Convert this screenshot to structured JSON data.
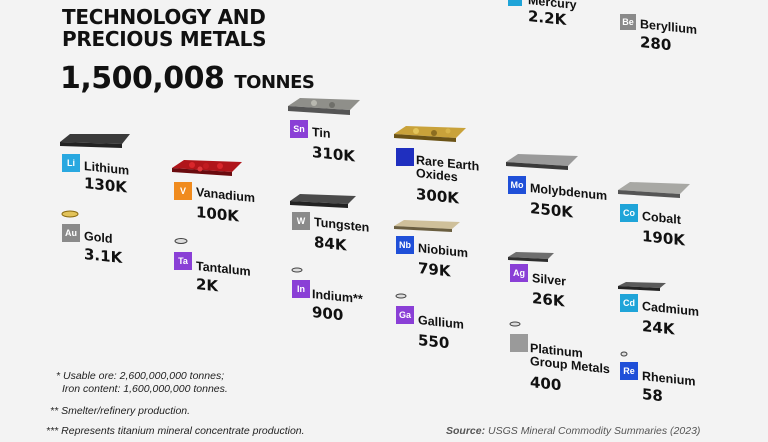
{
  "title_line1": "TECHNOLOGY AND",
  "title_line2": "PRECIOUS METALS",
  "total_value": "1,500,008",
  "total_unit": "TONNES",
  "colors": {
    "li": "#29a8e0",
    "v": "#f08b1e",
    "purple": "#8a3fd6",
    "gray": "#8a8a8a",
    "blue": "#1f4fd8",
    "cyan": "#1fa4d8"
  },
  "metals": [
    {
      "key": "hg",
      "symbol": "",
      "name": "Mercury",
      "value": "2.2K"
    },
    {
      "key": "be",
      "symbol": "Be",
      "name": "Beryllium",
      "value": "280"
    },
    {
      "key": "li",
      "symbol": "Li",
      "name": "Lithium",
      "value": "130K"
    },
    {
      "key": "v",
      "symbol": "V",
      "name": "Vanadium",
      "value": "100K"
    },
    {
      "key": "sn",
      "symbol": "Sn",
      "name": "Tin",
      "value": "310K"
    },
    {
      "key": "ree",
      "symbol": "",
      "name": "Rare Earth Oxides",
      "value": "300K"
    },
    {
      "key": "mo",
      "symbol": "Mo",
      "name": "Molybdenum",
      "value": "250K"
    },
    {
      "key": "co",
      "symbol": "Co",
      "name": "Cobalt",
      "value": "190K"
    },
    {
      "key": "au",
      "symbol": "Au",
      "name": "Gold",
      "value": "3.1K"
    },
    {
      "key": "w",
      "symbol": "W",
      "name": "Tungsten",
      "value": "84K"
    },
    {
      "key": "nb",
      "symbol": "Nb",
      "name": "Niobium",
      "value": "79K"
    },
    {
      "key": "ta",
      "symbol": "Ta",
      "name": "Tantalum",
      "value": "2K"
    },
    {
      "key": "ag",
      "symbol": "Ag",
      "name": "Silver",
      "value": "26K"
    },
    {
      "key": "in",
      "symbol": "In",
      "name": "Indium**",
      "value": "900"
    },
    {
      "key": "cd",
      "symbol": "Cd",
      "name": "Cadmium",
      "value": "24K"
    },
    {
      "key": "ga",
      "symbol": "Ga",
      "name": "Gallium",
      "value": "550"
    },
    {
      "key": "pgm",
      "symbol": "",
      "name": "Platinum Group Metals",
      "value": "400"
    },
    {
      "key": "re",
      "symbol": "Re",
      "name": "Rhenium",
      "value": "58"
    }
  ],
  "notes": {
    "n1": "* Usable ore: 2,600,000,000 tonnes;",
    "n1b": "Iron content: 1,600,000,000 tonnes.",
    "n2": "** Smelter/refinery production.",
    "n3": "*** Represents titanium mineral concentrate production."
  },
  "source_label": "Source:",
  "source_text": "USGS Mineral Commodity Summaries (2023)"
}
